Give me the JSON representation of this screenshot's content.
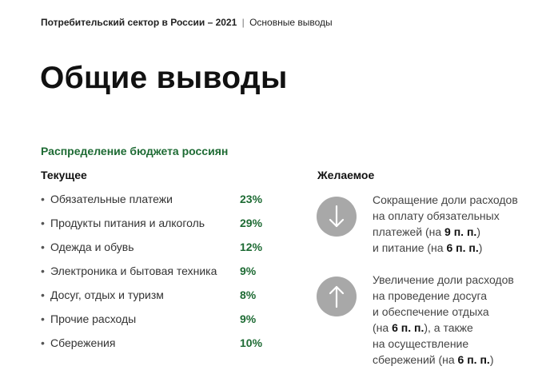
{
  "header": {
    "bold": "Потребительский сектор в России – 2021",
    "separator": "|",
    "section": "Основные выводы"
  },
  "title": "Общие выводы",
  "subtitle": "Распределение бюджета россиян",
  "current": {
    "heading": "Текущее",
    "bullet": "•",
    "items": [
      {
        "label": "Обязательные платежи",
        "value": "23%"
      },
      {
        "label": "Продукты питания и алкоголь",
        "value": "29%"
      },
      {
        "label": "Одежда и обувь",
        "value": "12%"
      },
      {
        "label": "Электроника и бытовая техника",
        "value": "9%"
      },
      {
        "label": "Досуг, отдых и туризм",
        "value": "8%"
      },
      {
        "label": "Прочие расходы",
        "value": "9%"
      },
      {
        "label": "Сбережения",
        "value": "10%"
      }
    ]
  },
  "desired": {
    "heading": "Желаемое",
    "decrease": {
      "icon": "arrow-down-icon",
      "l1": "Сокращение доли расходов",
      "l2": "на оплату обязательных",
      "l3a": "платежей (на ",
      "l3b": "9 п. п.",
      "l3c": ")",
      "l4a": "и питание (на ",
      "l4b": "6 п. п.",
      "l4c": ")"
    },
    "increase": {
      "icon": "arrow-up-icon",
      "l1": "Увеличение доли расходов",
      "l2": "на проведение досуга",
      "l3": "и обеспечение отдыха",
      "l4a": "(на ",
      "l4b": "6 п. п.",
      "l4c": "), а также",
      "l5": "на осуществление",
      "l6a": "сбережений (на ",
      "l6b": "6 п. п.",
      "l6c": ")"
    }
  },
  "colors": {
    "accent_green": "#1e6b34",
    "circle_gray": "#a8a8a8"
  }
}
